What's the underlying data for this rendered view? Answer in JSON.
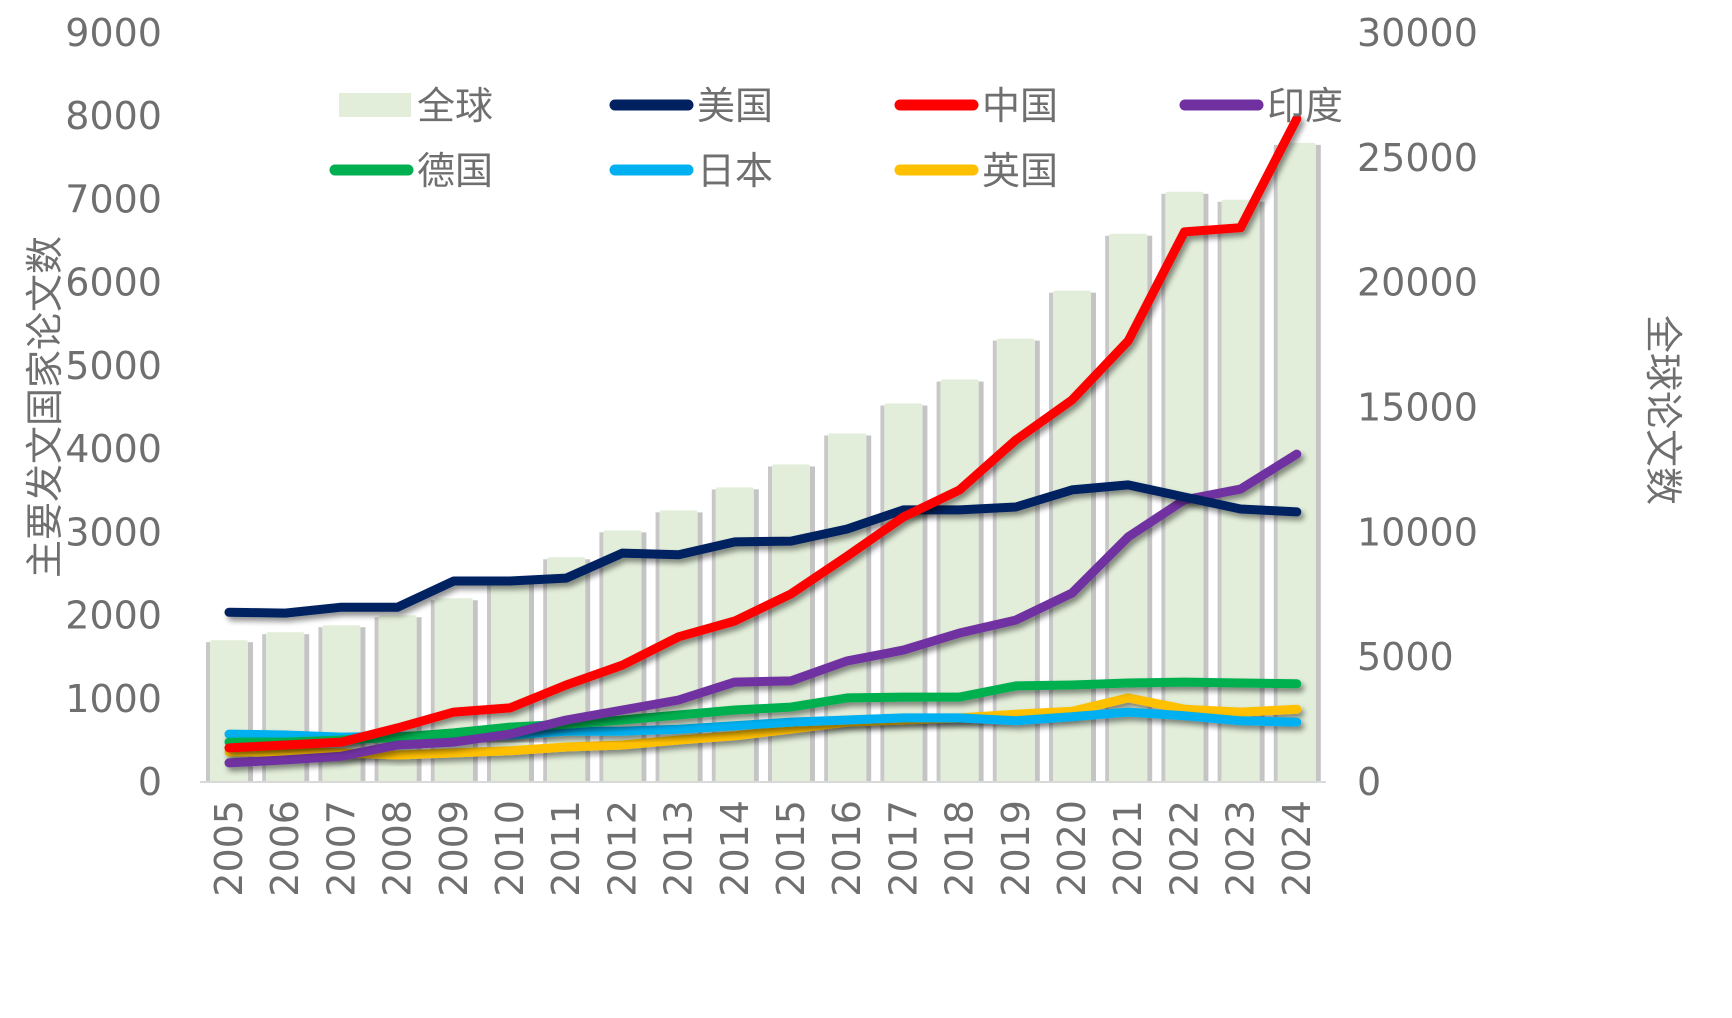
{
  "chart_data": {
    "type": "bar+line",
    "title": "",
    "xlabel": "",
    "ylabel_left": "主要发文国家论文数",
    "ylabel_right": "全球论文数",
    "ylim_left": [
      0,
      9000
    ],
    "ylim_right": [
      0,
      30000
    ],
    "yticks_left": [
      "0",
      "1000",
      "2000",
      "3000",
      "4000",
      "5000",
      "6000",
      "7000",
      "8000",
      "9000"
    ],
    "yticks_right": [
      "0",
      "5000",
      "10000",
      "15000",
      "20000",
      "25000",
      "30000"
    ],
    "grid": false,
    "legend_position": "top",
    "categories": [
      "2005",
      "2006",
      "2007",
      "2008",
      "2009",
      "2010",
      "2011",
      "2012",
      "2013",
      "2014",
      "2015",
      "2016",
      "2017",
      "2018",
      "2019",
      "2020",
      "2021",
      "2022",
      "2023",
      "2024"
    ],
    "bar_series": {
      "name": "全球",
      "axis": "right",
      "color": "#e2eed9",
      "values": [
        5680,
        6000,
        6280,
        6680,
        7360,
        8080,
        9000,
        10080,
        10880,
        11800,
        12720,
        13960,
        15160,
        16120,
        17760,
        19680,
        21960,
        23640,
        23320,
        25600
      ]
    },
    "series": [
      {
        "name": "美国",
        "axis": "left",
        "color": "#002060",
        "values": [
          2040,
          2030,
          2100,
          2100,
          2415,
          2415,
          2450,
          2750,
          2730,
          2885,
          2895,
          3040,
          3270,
          3270,
          3305,
          3510,
          3570,
          3425,
          3280,
          3245
        ]
      },
      {
        "name": "中国",
        "axis": "left",
        "color": "#ff0000",
        "values": [
          410,
          445,
          480,
          650,
          840,
          890,
          1165,
          1405,
          1745,
          1935,
          2260,
          2715,
          3185,
          3510,
          4110,
          4590,
          5300,
          6610,
          6660,
          7970
        ]
      },
      {
        "name": "印度",
        "axis": "left",
        "color": "#7030a0",
        "values": [
          230,
          265,
          310,
          445,
          480,
          575,
          745,
          865,
          985,
          1200,
          1215,
          1455,
          1585,
          1790,
          1945,
          2270,
          2945,
          3390,
          3520,
          3940
        ]
      },
      {
        "name": "德国",
        "axis": "left",
        "color": "#00b050",
        "values": [
          480,
          480,
          505,
          540,
          590,
          660,
          695,
          745,
          805,
          865,
          900,
          1010,
          1020,
          1020,
          1155,
          1165,
          1190,
          1200,
          1190,
          1180
        ]
      },
      {
        "name": "日本",
        "axis": "left",
        "color": "#00b0f0",
        "values": [
          575,
          565,
          540,
          550,
          550,
          565,
          610,
          610,
          635,
          675,
          720,
          745,
          770,
          770,
          735,
          785,
          840,
          795,
          735,
          720
        ]
      },
      {
        "name": "英国",
        "axis": "left",
        "color": "#ffc000",
        "values": [
          360,
          360,
          350,
          325,
          350,
          375,
          420,
          445,
          505,
          555,
          635,
          720,
          745,
          770,
          815,
          850,
          1010,
          875,
          840,
          875
        ]
      }
    ],
    "legend": [
      {
        "name": "全球",
        "kind": "bar",
        "color": "#e2eed9"
      },
      {
        "name": "美国",
        "kind": "line",
        "color": "#002060"
      },
      {
        "name": "中国",
        "kind": "line",
        "color": "#ff0000"
      },
      {
        "name": "印度",
        "kind": "line",
        "color": "#7030a0"
      },
      {
        "name": "德国",
        "kind": "line",
        "color": "#00b050"
      },
      {
        "name": "日本",
        "kind": "line",
        "color": "#00b0f0"
      },
      {
        "name": "英国",
        "kind": "line",
        "color": "#ffc000"
      }
    ]
  }
}
